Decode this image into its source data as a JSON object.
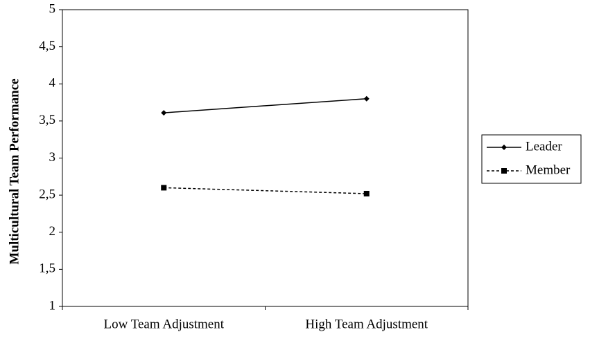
{
  "chart_data": {
    "type": "line",
    "y_label": "Multicultural Team Performance",
    "categories": [
      "Low Team Adjustment",
      "High Team Adjustment"
    ],
    "series": [
      {
        "name": "Leader",
        "color": "#000000",
        "line_style": "solid",
        "marker": "diamond",
        "values": [
          3.61,
          3.8
        ]
      },
      {
        "name": "Member",
        "color": "#000000",
        "line_style": "dashed",
        "marker": "square",
        "values": [
          2.6,
          2.52
        ]
      }
    ],
    "ylim": [
      1,
      5
    ],
    "yticks": [
      1,
      {
        "value": 1.5,
        "label": "1,5"
      },
      2,
      {
        "value": 2.5,
        "label": "2,5"
      },
      3,
      {
        "value": 3.5,
        "label": "3,5"
      },
      4,
      {
        "value": 4.5,
        "label": "4,5"
      },
      5
    ],
    "grid": false,
    "legend": "right"
  }
}
